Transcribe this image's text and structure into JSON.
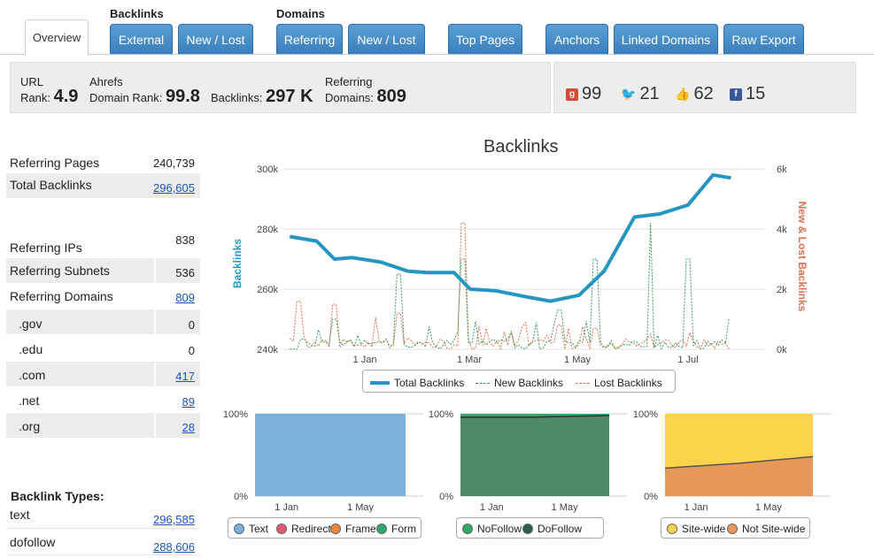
{
  "nav": {
    "overview": "Overview",
    "groups": {
      "backlinks": "Backlinks",
      "domains": "Domains"
    },
    "tabs": [
      "External",
      "New / Lost",
      "Referring",
      "New / Lost",
      "Top Pages",
      "Anchors",
      "Linked Domains",
      "Raw Export"
    ]
  },
  "stats": {
    "url_rank_label_1": "URL",
    "url_rank_label_2": "Rank:",
    "url_rank": "4.9",
    "domain_rank_label_1": "Ahrefs",
    "domain_rank_label_2": "Domain Rank:",
    "domain_rank": "99.8",
    "backlinks_label": "Backlinks:",
    "backlinks": "297 K",
    "ref_domains_label_1": "Referring",
    "ref_domains_label_2": "Domains:",
    "ref_domains": "809"
  },
  "social": {
    "google": "99",
    "twitter": "21",
    "likes": "62",
    "facebook": "15"
  },
  "left": {
    "referring_pages_label": "Referring Pages",
    "referring_pages": "240,739",
    "total_backlinks_label": "Total Backlinks",
    "total_backlinks": "296,605",
    "referring_ips_label": "Referring IPs",
    "referring_ips": "838",
    "referring_subnets_label": "Referring Subnets",
    "referring_subnets": "536",
    "referring_domains_label": "Referring Domains",
    "referring_domains": "809",
    "tlds": [
      {
        "label": ".gov",
        "value": "0"
      },
      {
        "label": ".edu",
        "value": "0"
      },
      {
        "label": ".com",
        "value": "417"
      },
      {
        "label": ".net",
        "value": "89"
      },
      {
        "label": ".org",
        "value": "28"
      }
    ],
    "backlink_types_label": "Backlink Types:",
    "types": [
      {
        "label": "text",
        "value": "296,585"
      },
      {
        "label": "dofollow",
        "value": "288,606"
      }
    ]
  },
  "chart": {
    "title": "Backlinks",
    "ylabel_left": "Backlinks",
    "ylabel_right": "New & Lost Backlinks",
    "left_ticks": [
      "300k",
      "280k",
      "260k",
      "240k"
    ],
    "right_ticks": [
      "6k",
      "4k",
      "2k",
      "0k"
    ],
    "x_ticks": [
      "1 Jan",
      "1 Mar",
      "1 May",
      "1 Jul"
    ],
    "legend": [
      "Total Backlinks",
      "New Backlinks",
      "Lost Backlinks"
    ],
    "colors": {
      "total": "#2496c1",
      "new": "#3c9a5b",
      "lost": "#e07050"
    }
  },
  "chart_data": [
    {
      "type": "line",
      "title": "Backlinks",
      "ylabel": "Backlinks",
      "ylabel_right": "New & Lost Backlinks",
      "ylim": [
        240000,
        300000
      ],
      "ylim_right": [
        0,
        6000
      ],
      "x_ticks": [
        "1 Jan",
        "1 Mar",
        "1 May",
        "1 Jul"
      ],
      "series": [
        {
          "name": "Total Backlinks",
          "axis": "left",
          "x": [
            "Nov 20",
            "Dec 5",
            "Dec 15",
            "Dec 25",
            "Jan 10",
            "Jan 25",
            "Feb 5",
            "Feb 20",
            "Mar 1",
            "Mar 15",
            "Apr 1",
            "Apr 15",
            "May 1",
            "May 15",
            "Jun 1",
            "Jun 15",
            "Jul 1",
            "Jul 15",
            "Jul 25"
          ],
          "values": [
            277500,
            276000,
            270000,
            270500,
            269000,
            266000,
            265500,
            265500,
            260000,
            259500,
            257500,
            256000,
            258000,
            266000,
            284000,
            285000,
            288000,
            298000,
            297000
          ]
        },
        {
          "name": "New Backlinks",
          "axis": "right",
          "x": [
            "Dec 15",
            "Jan 20",
            "Feb 25",
            "Apr 20",
            "May 10",
            "Jun 10",
            "Jul 1"
          ],
          "values": [
            1000,
            2500,
            3000,
            1300,
            3000,
            4200,
            3000
          ]
        },
        {
          "name": "Lost Backlinks",
          "axis": "right",
          "x": [
            "Nov 25",
            "Dec 15",
            "Jan 20",
            "Feb 25",
            "Apr 20",
            "May 10",
            "Jun 10"
          ],
          "values": [
            1600,
            1500,
            1200,
            4200,
            800,
            700,
            500
          ]
        }
      ]
    },
    {
      "type": "area",
      "ylim": [
        0,
        100
      ],
      "y_ticks": [
        "100%",
        "0%"
      ],
      "x_ticks": [
        "1 Jan",
        "1 May"
      ],
      "series": [
        {
          "name": "Text",
          "values": [
            100,
            100
          ]
        },
        {
          "name": "Redirect",
          "values": [
            0,
            0
          ]
        },
        {
          "name": "Frame",
          "values": [
            0,
            0
          ]
        },
        {
          "name": "Form",
          "values": [
            0,
            0
          ]
        }
      ]
    },
    {
      "type": "area",
      "ylim": [
        0,
        100
      ],
      "y_ticks": [
        "100%",
        "0%"
      ],
      "x_ticks": [
        "1 Jan",
        "1 May"
      ],
      "series": [
        {
          "name": "NoFollow",
          "values": [
            4,
            2
          ]
        },
        {
          "name": "DoFollow",
          "values": [
            96,
            98
          ]
        }
      ]
    },
    {
      "type": "area",
      "ylim": [
        0,
        100
      ],
      "y_ticks": [
        "100%",
        "0%"
      ],
      "x_ticks": [
        "1 Jan",
        "1 May"
      ],
      "series": [
        {
          "name": "Site-wide",
          "values": [
            66,
            52
          ]
        },
        {
          "name": "Not Site-wide",
          "values": [
            34,
            48
          ]
        }
      ]
    }
  ],
  "mini_legends": {
    "type": [
      "Text",
      "Redirect",
      "Frame",
      "Form"
    ],
    "follow": [
      "NoFollow",
      "DoFollow"
    ],
    "site": [
      "Site-wide",
      "Not Site-wide"
    ]
  },
  "mini_ticks": {
    "top": "100%",
    "bottom": "0%",
    "x1": "1 Jan",
    "x2": "1 May"
  },
  "colors": {
    "tab": "#3a7fbd",
    "text_area": "#7bb0d8",
    "nofollow": "#2fa86a",
    "dofollow": "#4e8a68",
    "sitewide": "#fcd34d",
    "not_sitewide": "#e8975a",
    "redirect": "#e05a70",
    "frame": "#e8873d",
    "form": "#2fa86a"
  }
}
